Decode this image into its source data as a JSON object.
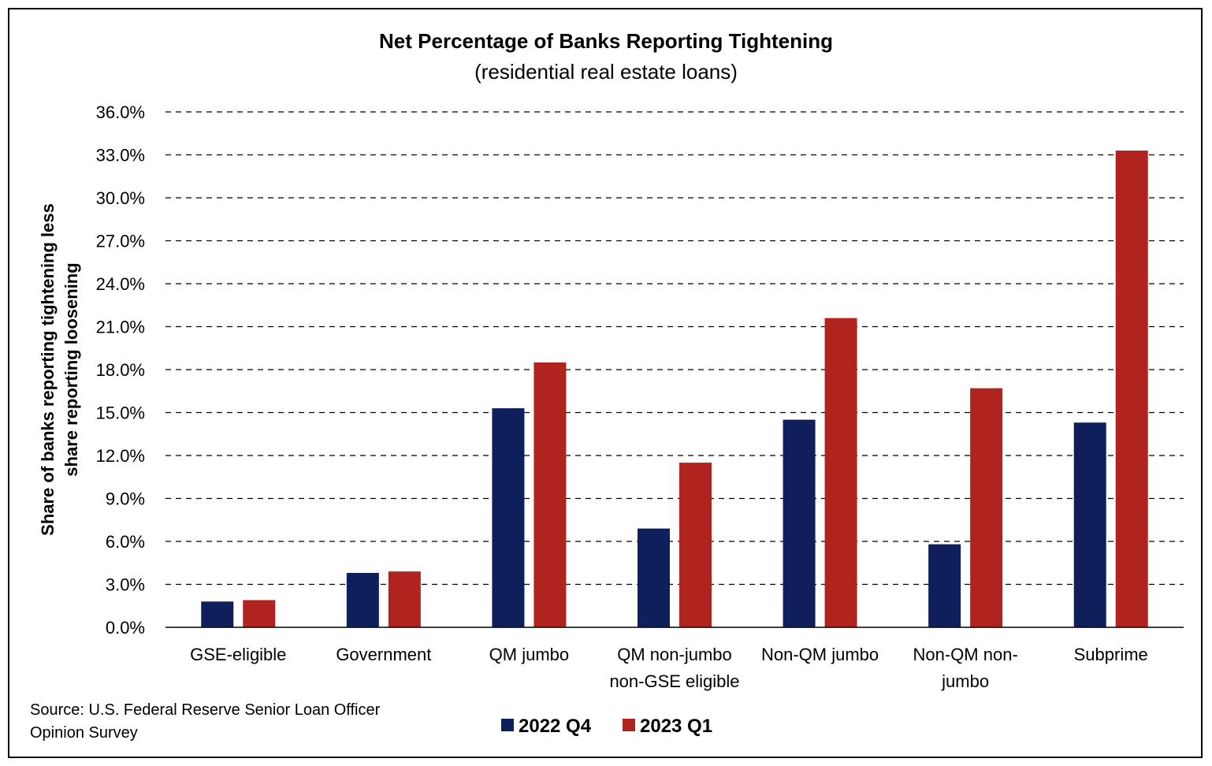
{
  "chart_data": {
    "type": "bar",
    "title": "Net Percentage of Banks Reporting Tightening",
    "subtitle": "(residential real estate loans)",
    "ylabel_lines": [
      "Share of banks reporting tightening less",
      "share reporting loosening"
    ],
    "xlabel": "",
    "categories": [
      [
        "GSE-eligible"
      ],
      [
        "Government"
      ],
      [
        "QM jumbo"
      ],
      [
        "QM non-jumbo",
        "non-GSE eligible"
      ],
      [
        "Non-QM jumbo"
      ],
      [
        "Non-QM non-",
        "jumbo"
      ],
      [
        "Subprime"
      ]
    ],
    "series": [
      {
        "name": "2022 Q4",
        "color": "#0f1f5c",
        "values": [
          1.8,
          3.8,
          15.3,
          6.9,
          14.5,
          5.8,
          14.3
        ]
      },
      {
        "name": "2023 Q1",
        "color": "#b0231f",
        "values": [
          1.9,
          3.9,
          18.5,
          11.5,
          21.6,
          16.7,
          33.3
        ]
      }
    ],
    "yticks": [
      "0.0%",
      "3.0%",
      "6.0%",
      "9.0%",
      "12.0%",
      "15.0%",
      "18.0%",
      "21.0%",
      "24.0%",
      "27.0%",
      "30.0%",
      "33.0%",
      "36.0%"
    ],
    "ylim": [
      0,
      36
    ],
    "grid": "horizontal dashed",
    "legend_position": "bottom-center",
    "source_lines": [
      "Source: U.S. Federal Reserve Senior Loan Officer",
      "Opinion Survey"
    ]
  }
}
